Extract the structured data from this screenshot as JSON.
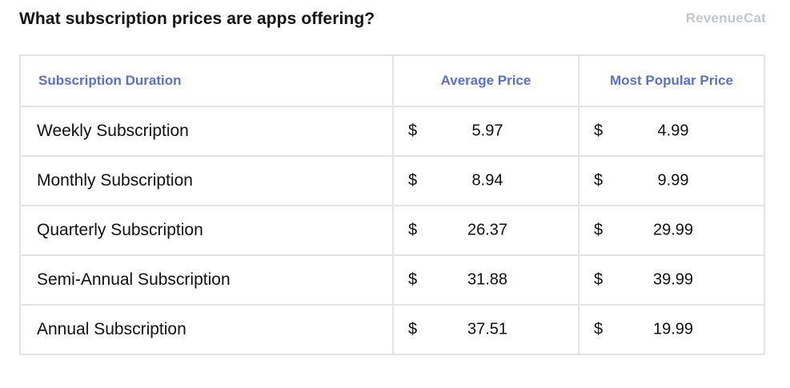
{
  "header": {
    "title": "What subscription prices are apps offering?",
    "brand": "RevenueCat"
  },
  "colors": {
    "header_text": "#5b6fd1",
    "border": "#e4e4e4",
    "brand": "#c3c6cf"
  },
  "chart_data": {
    "type": "table",
    "title": "What subscription prices are apps offering?",
    "columns": [
      "Subscription Duration",
      "Average Price",
      "Most Popular Price"
    ],
    "currency_symbol": "$",
    "rows": [
      {
        "duration": "Weekly Subscription",
        "average": "5.97",
        "popular": "4.99"
      },
      {
        "duration": "Monthly Subscription",
        "average": "8.94",
        "popular": "9.99"
      },
      {
        "duration": "Quarterly Subscription",
        "average": "26.37",
        "popular": "29.99"
      },
      {
        "duration": "Semi-Annual Subscription",
        "average": "31.88",
        "popular": "39.99"
      },
      {
        "duration": "Annual Subscription",
        "average": "37.51",
        "popular": "19.99"
      }
    ]
  }
}
